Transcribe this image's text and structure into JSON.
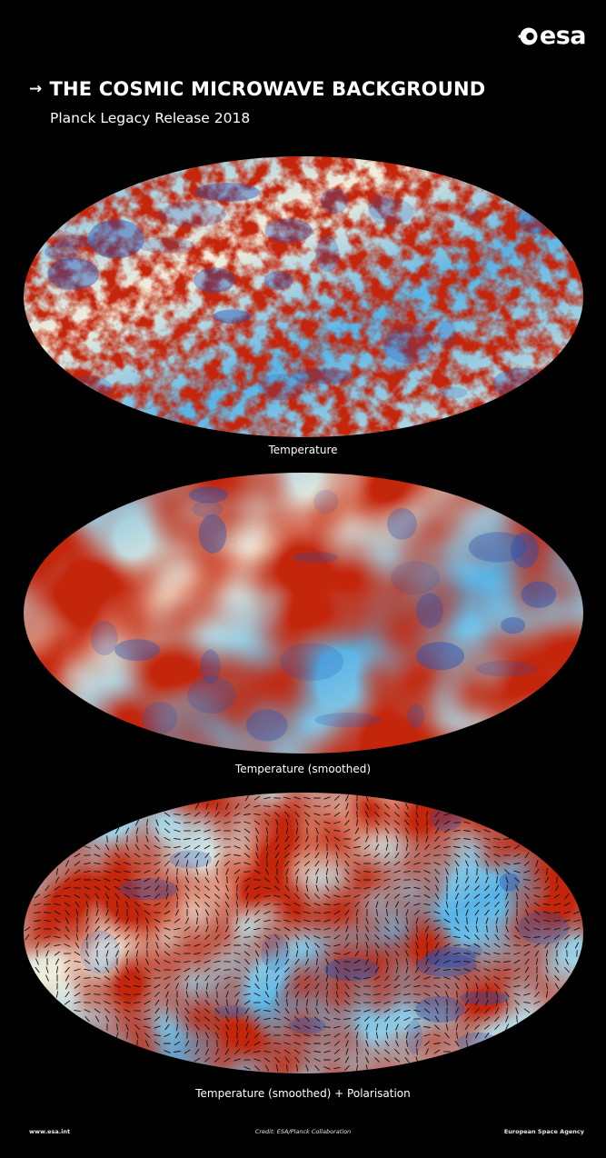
{
  "logo": {
    "text": "esa",
    "icon": "esa-logo-icon"
  },
  "header": {
    "arrow_icon": "arrow-right-icon",
    "title": "THE COSMIC MICROWAVE BACKGROUND",
    "subtitle": "Planck Legacy Release 2018"
  },
  "maps": [
    {
      "caption": "Temperature"
    },
    {
      "caption": "Temperature (smoothed)"
    },
    {
      "caption": "Temperature (smoothed) + Polarisation"
    }
  ],
  "footer": {
    "left": "www.esa.int",
    "center": "Credit: ESA/Planck Collaboration",
    "right": "European Space Agency"
  },
  "colors": {
    "background": "#000000",
    "cold": "#1f4fb4",
    "cool": "#58b4e6",
    "neutral": "#f4eedc",
    "warm": "#f2a840",
    "hot": "#c4260c"
  }
}
